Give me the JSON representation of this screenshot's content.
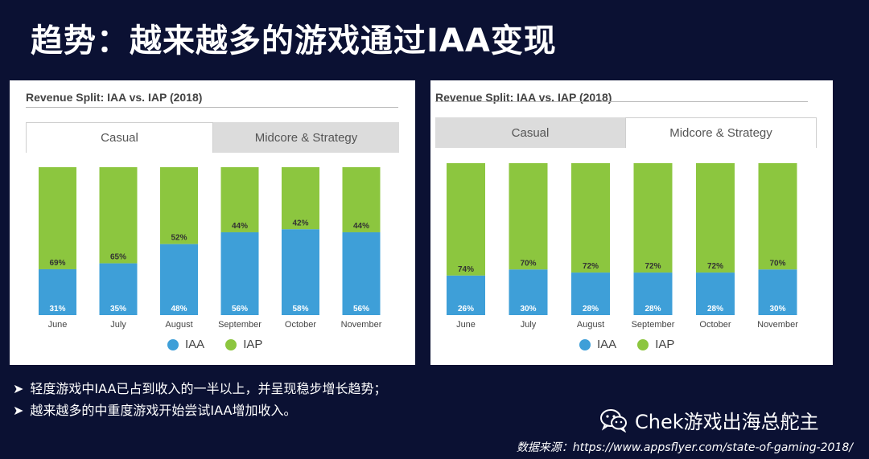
{
  "slide": {
    "title": "趋势：越来越多的游戏通过IAA变现",
    "bullets": [
      {
        "marker": "➤",
        "text": "轻度游戏中IAA已占到收入的一半以上，并呈现稳步增长趋势；"
      },
      {
        "marker": "➤",
        "text": "越来越多的中重度游戏开始尝试IAA增加收入。"
      }
    ],
    "wechat_account": "Chek游戏出海总舵主",
    "source": "数据来源：https://www.appsflyer.com/state-of-gaming-2018/"
  },
  "panels": [
    {
      "heading": "Revenue Split: IAA vs. IAP (2018)",
      "tabs": [
        {
          "label": "Casual",
          "active": true
        },
        {
          "label": "Midcore & Strategy",
          "active": false
        }
      ]
    },
    {
      "heading": "Revenue Split: IAA vs. IAP (2018)",
      "tabs": [
        {
          "label": "Casual",
          "active": false
        },
        {
          "label": "Midcore & Strategy",
          "active": true
        }
      ]
    }
  ],
  "colors": {
    "iaa": "#3e9fd8",
    "iap": "#8cc63f",
    "background": "#0b1133"
  },
  "chart_data": [
    {
      "type": "bar",
      "stacked": true,
      "title": "Revenue Split: IAA vs. IAP (2018)",
      "subset": "Casual",
      "categories": [
        "June",
        "July",
        "August",
        "September",
        "October",
        "November"
      ],
      "series": [
        {
          "name": "IAA",
          "values": [
            31,
            35,
            48,
            56,
            58,
            56
          ],
          "labels": [
            "31%",
            "35%",
            "48%",
            "56%",
            "58%",
            "56%"
          ]
        },
        {
          "name": "IAP",
          "values": [
            69,
            65,
            52,
            44,
            42,
            44
          ],
          "labels": [
            "69%",
            "65%",
            "52%",
            "44%",
            "42%",
            "44%"
          ]
        }
      ],
      "ylim": [
        0,
        100
      ],
      "legend": "bottom-center"
    },
    {
      "type": "bar",
      "stacked": true,
      "title": "Revenue Split: IAA vs. IAP (2018)",
      "subset": "Midcore & Strategy",
      "categories": [
        "June",
        "July",
        "August",
        "September",
        "October",
        "November"
      ],
      "series": [
        {
          "name": "IAA",
          "values": [
            26,
            30,
            28,
            28,
            28,
            30
          ],
          "labels": [
            "26%",
            "30%",
            "28%",
            "28%",
            "28%",
            "30%"
          ]
        },
        {
          "name": "IAP",
          "values": [
            74,
            70,
            72,
            72,
            72,
            70
          ],
          "labels": [
            "74%",
            "70%",
            "72%",
            "72%",
            "72%",
            "70%"
          ]
        }
      ],
      "ylim": [
        0,
        100
      ],
      "legend": "bottom-center"
    }
  ]
}
